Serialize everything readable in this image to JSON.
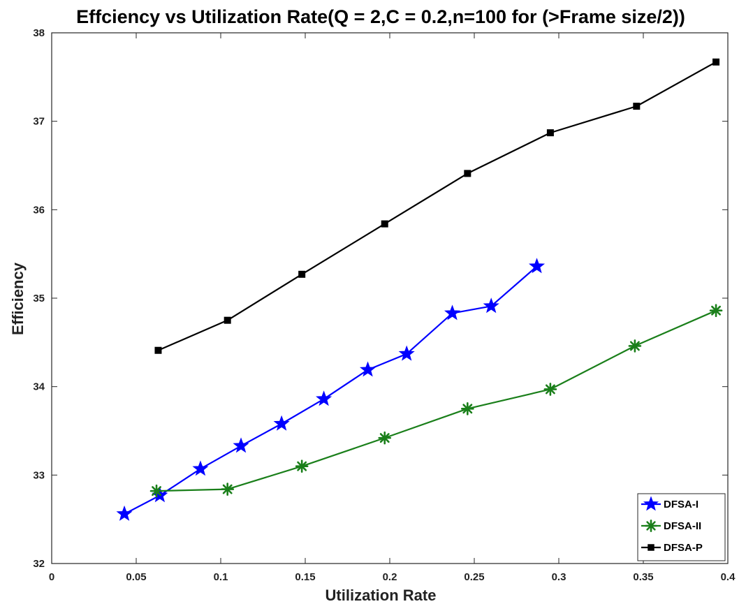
{
  "chart_data": {
    "type": "line",
    "title": "Effciency vs Utilization Rate(Q = 2,C = 0.2,n=100 for (>Frame size/2))",
    "xlabel": "Utilization Rate",
    "ylabel": "Efficiency",
    "xlim": [
      0,
      0.4
    ],
    "ylim": [
      32,
      38
    ],
    "xticks": [
      0,
      0.05,
      0.1,
      0.15,
      0.2,
      0.25,
      0.3,
      0.35,
      0.4
    ],
    "xtick_labels": [
      "0",
      "0.05",
      "0.1",
      "0.15",
      "0.2",
      "0.25",
      "0.3",
      "0.35",
      "0.4"
    ],
    "yticks": [
      32,
      33,
      34,
      35,
      36,
      37,
      38
    ],
    "ytick_labels": [
      "32",
      "33",
      "34",
      "35",
      "36",
      "37",
      "38"
    ],
    "grid": false,
    "legend_position": "bottom-right",
    "series": [
      {
        "name": "DFSA-I",
        "color": "#0000ff",
        "marker": "star",
        "x": [
          0.043,
          0.064,
          0.088,
          0.112,
          0.136,
          0.161,
          0.187,
          0.21,
          0.237,
          0.26,
          0.287
        ],
        "y": [
          32.56,
          32.77,
          33.07,
          33.33,
          33.58,
          33.86,
          34.19,
          34.37,
          34.83,
          34.91,
          35.36
        ]
      },
      {
        "name": "DFSA-II",
        "color": "#1a7f1a",
        "marker": "asterisk",
        "x": [
          0.062,
          0.104,
          0.148,
          0.197,
          0.246,
          0.295,
          0.345,
          0.393
        ],
        "y": [
          32.82,
          32.84,
          33.1,
          33.42,
          33.75,
          33.97,
          34.46,
          34.86
        ]
      },
      {
        "name": "DFSA-P",
        "color": "#000000",
        "marker": "square",
        "x": [
          0.063,
          0.104,
          0.148,
          0.197,
          0.246,
          0.295,
          0.346,
          0.393
        ],
        "y": [
          34.41,
          34.75,
          35.27,
          35.84,
          36.41,
          36.87,
          37.17,
          37.67
        ]
      }
    ]
  }
}
